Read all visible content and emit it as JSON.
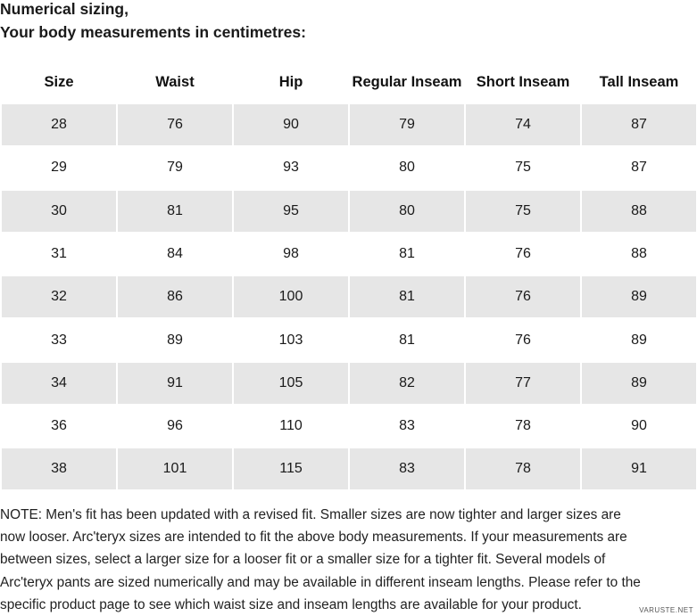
{
  "heading": [
    "Numerical sizing,",
    "Your body measurements in centimetres:"
  ],
  "table": {
    "columns": [
      "Size",
      "Waist",
      "Hip",
      "Regular Inseam",
      "Short Inseam",
      "Tall Inseam"
    ],
    "rows": [
      [
        28,
        76,
        90,
        79,
        74,
        87
      ],
      [
        29,
        79,
        93,
        80,
        75,
        87
      ],
      [
        30,
        81,
        95,
        80,
        75,
        88
      ],
      [
        31,
        84,
        98,
        81,
        76,
        88
      ],
      [
        32,
        86,
        100,
        81,
        76,
        89
      ],
      [
        33,
        89,
        103,
        81,
        76,
        89
      ],
      [
        34,
        91,
        105,
        82,
        77,
        89
      ],
      [
        36,
        96,
        110,
        83,
        78,
        90
      ],
      [
        38,
        101,
        115,
        83,
        78,
        91
      ]
    ]
  },
  "note": [
    "NOTE: Men's fit has been updated with a revised fit. Smaller sizes are now tighter and larger sizes are",
    "now looser. Arc'teryx sizes are intended to fit the above body measurements. If your measurements are",
    "between sizes, select a larger size for a looser fit or a smaller size for a tighter fit. Several models of",
    "Arc'teryx pants are sized numerically and may be available in different inseam lengths. Please refer to the",
    "specific product page to see which waist size and inseam lengths are available for your product."
  ],
  "watermark": "VARUSTE.NET"
}
